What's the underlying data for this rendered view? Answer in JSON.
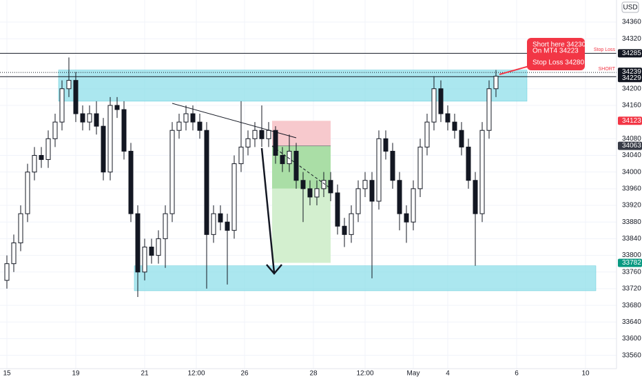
{
  "chart_data": {
    "type": "candlestick",
    "currency": "USD",
    "x": [
      2,
      4,
      6,
      8,
      10,
      12,
      14,
      16,
      18,
      20,
      22,
      24,
      26,
      28,
      30,
      32,
      34,
      36,
      38,
      40,
      42,
      44,
      46,
      48,
      50,
      52,
      54,
      56,
      58,
      60,
      62,
      64,
      66,
      68,
      70,
      72,
      74,
      76,
      78,
      80,
      82,
      84,
      86,
      88,
      90,
      92,
      94,
      96,
      98,
      100,
      102,
      104,
      106,
      108,
      110,
      112,
      114,
      116,
      118,
      120,
      122,
      124,
      126,
      128,
      130,
      132,
      134,
      136,
      138,
      140,
      142,
      144
    ],
    "open": [
      33740,
      33780,
      33830,
      33900,
      34000,
      34040,
      34030,
      34080,
      34120,
      34200,
      34220,
      34140,
      34120,
      34140,
      34110,
      34000,
      34160,
      34150,
      34050,
      33900,
      33760,
      33820,
      33800,
      33840,
      33900,
      34100,
      34120,
      34140,
      34120,
      34100,
      33850,
      33900,
      33880,
      33860,
      34020,
      34060,
      34080,
      34100,
      34080,
      34100,
      34040,
      34020,
      34050,
      33980,
      33960,
      33940,
      33960,
      33980,
      33950,
      33870,
      33850,
      33900,
      33960,
      33980,
      33930,
      34080,
      34050,
      33980,
      33900,
      33880,
      33960,
      34060,
      34120,
      34200,
      34140,
      34120,
      34100,
      34060,
      33980,
      33900,
      34100,
      34200
    ],
    "high": [
      33800,
      33850,
      33920,
      34020,
      34060,
      34060,
      34100,
      34140,
      34220,
      34275,
      34240,
      34160,
      34160,
      34170,
      34130,
      34180,
      34180,
      34170,
      34070,
      33920,
      33840,
      33840,
      33860,
      33920,
      34120,
      34140,
      34160,
      34160,
      34140,
      34120,
      33920,
      33920,
      33900,
      34040,
      34170,
      34100,
      34120,
      34160,
      34120,
      34110,
      34060,
      34090,
      34070,
      34000,
      33980,
      33980,
      34000,
      34000,
      33970,
      33890,
      33920,
      33980,
      34000,
      34000,
      34100,
      34100,
      34070,
      34000,
      33920,
      33980,
      34080,
      34140,
      34230,
      34220,
      34160,
      34140,
      34120,
      34080,
      34000,
      34120,
      34220,
      34245
    ],
    "low": [
      33720,
      33760,
      33810,
      33880,
      33980,
      34010,
      34010,
      34060,
      34100,
      34180,
      34120,
      34100,
      34100,
      34090,
      33980,
      33980,
      34130,
      34030,
      33880,
      33700,
      33740,
      33780,
      33780,
      33770,
      33880,
      34080,
      34100,
      34100,
      34080,
      33720,
      33830,
      33860,
      33730,
      33840,
      34000,
      34040,
      34060,
      34060,
      34060,
      34020,
      34000,
      34000,
      33960,
      33880,
      33920,
      33920,
      33940,
      33930,
      33850,
      33820,
      33830,
      33880,
      33940,
      33745,
      33910,
      34030,
      33960,
      33860,
      33830,
      33860,
      33940,
      34040,
      34100,
      34120,
      34100,
      34080,
      34040,
      33960,
      33775,
      33880,
      34080,
      34180
    ],
    "close": [
      33780,
      33830,
      33900,
      34000,
      34040,
      34030,
      34080,
      34120,
      34200,
      34220,
      34140,
      34120,
      34140,
      34110,
      34000,
      34160,
      34150,
      34050,
      33900,
      33760,
      33820,
      33800,
      33840,
      33900,
      34100,
      34120,
      34140,
      34120,
      34100,
      33850,
      33900,
      33880,
      33860,
      34020,
      34060,
      34080,
      34100,
      34080,
      34100,
      34040,
      34020,
      34050,
      33980,
      33960,
      33940,
      33960,
      33980,
      33950,
      33870,
      33850,
      33900,
      33960,
      33980,
      33930,
      34080,
      34050,
      33980,
      33900,
      33880,
      33960,
      34060,
      34120,
      34200,
      34140,
      34120,
      34100,
      34060,
      33980,
      33900,
      34100,
      34200,
      34230
    ],
    "xlim": [
      0,
      179
    ],
    "ylim": [
      33528,
      34413
    ],
    "xticks": [
      {
        "value": 2,
        "label": "15"
      },
      {
        "value": 22,
        "label": "19"
      },
      {
        "value": 42,
        "label": "21"
      },
      {
        "value": 57,
        "label": "12:00"
      },
      {
        "value": 71,
        "label": "26"
      },
      {
        "value": 91,
        "label": "28"
      },
      {
        "value": 106,
        "label": "12:00"
      },
      {
        "value": 120,
        "label": "May"
      },
      {
        "value": 130,
        "label": "4"
      },
      {
        "value": 150,
        "label": "6"
      },
      {
        "value": 170,
        "label": "10"
      }
    ],
    "yticks": [
      34360,
      34320,
      34200,
      34160,
      34080,
      34040,
      34000,
      33960,
      33920,
      33880,
      33840,
      33800,
      33760,
      33720,
      33680,
      33640,
      33600,
      33560
    ],
    "grid": true,
    "zones": [
      {
        "top": 34245,
        "bottom": 34170,
        "x": [
          17,
          153
        ],
        "color": "#8fdfea"
      },
      {
        "top": 33775,
        "bottom": 33715,
        "x": [
          39,
          173
        ],
        "color": "#8fdfea"
      }
    ],
    "position": {
      "stop": 34123,
      "entry": 34063,
      "target": 33782,
      "x": [
        79,
        96
      ]
    },
    "price_lines": [
      {
        "value": 34285,
        "label": "Stop Loss",
        "style": "solid"
      },
      {
        "value": 34239,
        "label": "SHORT",
        "style": "dotted"
      },
      {
        "value": 34229,
        "style": "solid"
      }
    ],
    "callout": [
      "Short here 34230",
      "On MT4 34223",
      "Stop Loss 34280"
    ]
  }
}
